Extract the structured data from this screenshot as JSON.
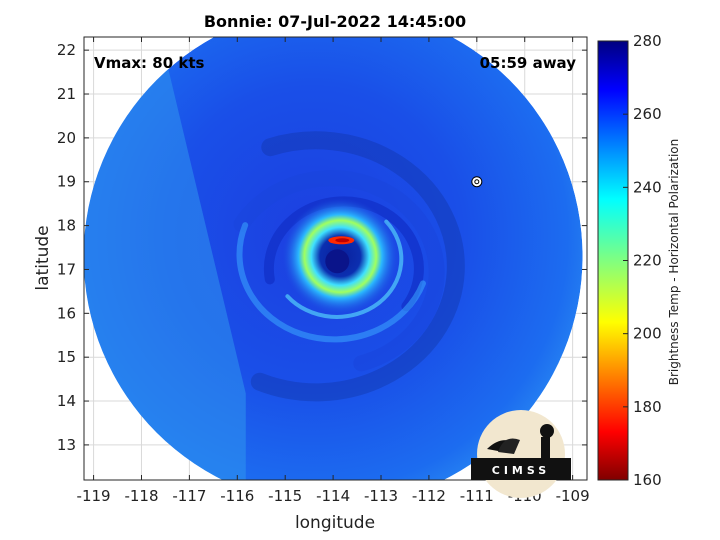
{
  "chart_data": {
    "type": "heatmap",
    "title": "Bonnie: 07-Jul-2022 14:45:00",
    "xlabel": "longitude",
    "ylabel": "latitude",
    "xlim": [
      -119.2,
      -108.7
    ],
    "ylim": [
      12.2,
      22.3
    ],
    "xticks": [
      -119,
      -118,
      -117,
      -116,
      -115,
      -114,
      -113,
      -112,
      -111,
      -110,
      -109
    ],
    "yticks": [
      13,
      14,
      15,
      16,
      17,
      18,
      19,
      20,
      21,
      22
    ],
    "xtick_labels": [
      "-119",
      "-118",
      "-117",
      "-116",
      "-115",
      "-114",
      "-113",
      "-112",
      "-111",
      "-110",
      "-109"
    ],
    "ytick_labels": [
      "13",
      "14",
      "15",
      "16",
      "17",
      "18",
      "19",
      "20",
      "21",
      "22"
    ],
    "grid": true,
    "storm_center": {
      "lon": -113.85,
      "lat": 17.3
    },
    "swath_center": {
      "lon": -114.0,
      "lat": 17.3
    },
    "swath_radius_deg": 5.6,
    "storm_marker": {
      "lon": -111.0,
      "lat": 19.0
    },
    "annotations": {
      "vmax": "Vmax: 80 kts",
      "time_away": "05:59 away"
    },
    "colorbar": {
      "label": "Brightness Temp - Horizontal Polarization",
      "min": 160,
      "max": 280,
      "ticks": [
        160,
        180,
        200,
        220,
        240,
        260,
        280
      ],
      "tick_labels": [
        "160",
        "180",
        "200",
        "220",
        "240",
        "260",
        "280"
      ],
      "colormap": "jet"
    },
    "logo_text": "CIMSS"
  }
}
